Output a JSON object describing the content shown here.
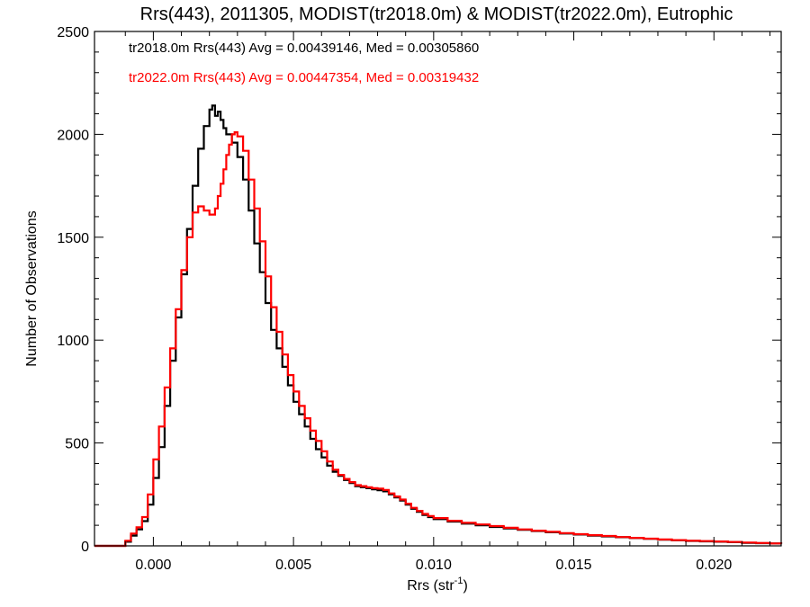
{
  "chart_data": {
    "type": "line",
    "title": "Rrs(443), 2011305, MODIST(tr2018.0m) & MODIST(tr2022.0m), Eutrophic",
    "xlabel": "Rrs (str",
    "xlabel_sup": "-1",
    "xlabel_tail": ")",
    "ylabel": "Number of Observations",
    "xlim": [
      -0.0021,
      0.0224
    ],
    "ylim": [
      0,
      2500
    ],
    "x_ticks": [
      0.0,
      0.005,
      0.01,
      0.015,
      0.02
    ],
    "x_tick_labels": [
      "0.000",
      "0.005",
      "0.010",
      "0.015",
      "0.020"
    ],
    "y_ticks": [
      0,
      500,
      1000,
      1500,
      2000,
      2500
    ],
    "y_tick_labels": [
      "0",
      "500",
      "1000",
      "1500",
      "2000",
      "2500"
    ],
    "grid": false,
    "step": true,
    "series": [
      {
        "color": "#000000",
        "stats_text": "tr2018.0m Rrs(443) Avg = 0.00439146, Med = 0.00305860",
        "points": [
          [
            -0.0021,
            0
          ],
          [
            -0.0012,
            0
          ],
          [
            -0.001,
            20
          ],
          [
            -0.0008,
            50
          ],
          [
            -0.0006,
            80
          ],
          [
            -0.0004,
            120
          ],
          [
            -0.0002,
            200
          ],
          [
            0.0,
            330
          ],
          [
            0.0002,
            480
          ],
          [
            0.0004,
            680
          ],
          [
            0.0006,
            900
          ],
          [
            0.0008,
            1110
          ],
          [
            0.001,
            1320
          ],
          [
            0.0012,
            1540
          ],
          [
            0.0014,
            1750
          ],
          [
            0.0016,
            1930
          ],
          [
            0.0018,
            2040
          ],
          [
            0.002,
            2120
          ],
          [
            0.0021,
            2140
          ],
          [
            0.0022,
            2090
          ],
          [
            0.0023,
            2110
          ],
          [
            0.0024,
            2070
          ],
          [
            0.0025,
            2030
          ],
          [
            0.0026,
            2000
          ],
          [
            0.0028,
            1960
          ],
          [
            0.003,
            1890
          ],
          [
            0.0032,
            1780
          ],
          [
            0.0034,
            1630
          ],
          [
            0.0036,
            1470
          ],
          [
            0.0038,
            1330
          ],
          [
            0.004,
            1180
          ],
          [
            0.0042,
            1050
          ],
          [
            0.0044,
            960
          ],
          [
            0.0046,
            870
          ],
          [
            0.0048,
            780
          ],
          [
            0.005,
            700
          ],
          [
            0.0052,
            640
          ],
          [
            0.0054,
            580
          ],
          [
            0.0056,
            520
          ],
          [
            0.0058,
            470
          ],
          [
            0.006,
            430
          ],
          [
            0.0062,
            390
          ],
          [
            0.0064,
            360
          ],
          [
            0.0066,
            340
          ],
          [
            0.0068,
            320
          ],
          [
            0.007,
            305
          ],
          [
            0.0072,
            290
          ],
          [
            0.0074,
            285
          ],
          [
            0.0076,
            280
          ],
          [
            0.0078,
            275
          ],
          [
            0.008,
            270
          ],
          [
            0.0082,
            265
          ],
          [
            0.0084,
            250
          ],
          [
            0.0086,
            235
          ],
          [
            0.0088,
            220
          ],
          [
            0.009,
            200
          ],
          [
            0.0092,
            180
          ],
          [
            0.0094,
            165
          ],
          [
            0.0096,
            150
          ],
          [
            0.0098,
            140
          ],
          [
            0.01,
            130
          ],
          [
            0.0105,
            118
          ],
          [
            0.011,
            108
          ],
          [
            0.0115,
            100
          ],
          [
            0.012,
            92
          ],
          [
            0.0125,
            85
          ],
          [
            0.013,
            78
          ],
          [
            0.0135,
            72
          ],
          [
            0.014,
            66
          ],
          [
            0.0145,
            60
          ],
          [
            0.015,
            55
          ],
          [
            0.0155,
            50
          ],
          [
            0.016,
            46
          ],
          [
            0.0165,
            42
          ],
          [
            0.017,
            38
          ],
          [
            0.0175,
            34
          ],
          [
            0.018,
            30
          ],
          [
            0.0185,
            27
          ],
          [
            0.019,
            24
          ],
          [
            0.0195,
            22
          ],
          [
            0.02,
            20
          ],
          [
            0.0205,
            18
          ],
          [
            0.021,
            15
          ],
          [
            0.0215,
            13
          ],
          [
            0.022,
            12
          ],
          [
            0.0224,
            10
          ]
        ]
      },
      {
        "color": "#ff0000",
        "stats_text": "tr2022.0m Rrs(443) Avg = 0.00447354, Med = 0.00319432",
        "points": [
          [
            -0.0021,
            0
          ],
          [
            -0.0012,
            0
          ],
          [
            -0.001,
            25
          ],
          [
            -0.0008,
            60
          ],
          [
            -0.0006,
            90
          ],
          [
            -0.0004,
            140
          ],
          [
            -0.0002,
            250
          ],
          [
            0.0,
            420
          ],
          [
            0.0002,
            580
          ],
          [
            0.0004,
            770
          ],
          [
            0.0006,
            960
          ],
          [
            0.0008,
            1150
          ],
          [
            0.001,
            1340
          ],
          [
            0.0012,
            1500
          ],
          [
            0.0014,
            1620
          ],
          [
            0.0016,
            1650
          ],
          [
            0.0018,
            1630
          ],
          [
            0.002,
            1610
          ],
          [
            0.0022,
            1640
          ],
          [
            0.0023,
            1700
          ],
          [
            0.0024,
            1760
          ],
          [
            0.0025,
            1830
          ],
          [
            0.0026,
            1900
          ],
          [
            0.0027,
            1950
          ],
          [
            0.0028,
            2000
          ],
          [
            0.0029,
            2010
          ],
          [
            0.003,
            1990
          ],
          [
            0.0032,
            1920
          ],
          [
            0.0034,
            1780
          ],
          [
            0.0036,
            1640
          ],
          [
            0.0038,
            1480
          ],
          [
            0.004,
            1310
          ],
          [
            0.0042,
            1160
          ],
          [
            0.0044,
            1040
          ],
          [
            0.0046,
            930
          ],
          [
            0.0048,
            830
          ],
          [
            0.005,
            750
          ],
          [
            0.0052,
            680
          ],
          [
            0.0054,
            620
          ],
          [
            0.0056,
            560
          ],
          [
            0.0058,
            510
          ],
          [
            0.006,
            460
          ],
          [
            0.0062,
            410
          ],
          [
            0.0064,
            370
          ],
          [
            0.0066,
            345
          ],
          [
            0.0068,
            325
          ],
          [
            0.007,
            310
          ],
          [
            0.0072,
            295
          ],
          [
            0.0074,
            290
          ],
          [
            0.0076,
            285
          ],
          [
            0.0078,
            280
          ],
          [
            0.008,
            278
          ],
          [
            0.0082,
            272
          ],
          [
            0.0084,
            255
          ],
          [
            0.0086,
            240
          ],
          [
            0.0088,
            225
          ],
          [
            0.009,
            205
          ],
          [
            0.0092,
            185
          ],
          [
            0.0094,
            170
          ],
          [
            0.0096,
            155
          ],
          [
            0.0098,
            145
          ],
          [
            0.01,
            135
          ],
          [
            0.0105,
            122
          ],
          [
            0.011,
            112
          ],
          [
            0.0115,
            104
          ],
          [
            0.012,
            96
          ],
          [
            0.0125,
            88
          ],
          [
            0.013,
            80
          ],
          [
            0.0135,
            74
          ],
          [
            0.014,
            68
          ],
          [
            0.0145,
            62
          ],
          [
            0.015,
            57
          ],
          [
            0.0155,
            52
          ],
          [
            0.016,
            48
          ],
          [
            0.0165,
            43
          ],
          [
            0.017,
            39
          ],
          [
            0.0175,
            35
          ],
          [
            0.018,
            31
          ],
          [
            0.0185,
            28
          ],
          [
            0.019,
            25
          ],
          [
            0.0195,
            23
          ],
          [
            0.02,
            21
          ],
          [
            0.0205,
            19
          ],
          [
            0.021,
            16
          ],
          [
            0.0215,
            14
          ],
          [
            0.022,
            12
          ],
          [
            0.0224,
            11
          ]
        ]
      }
    ]
  }
}
